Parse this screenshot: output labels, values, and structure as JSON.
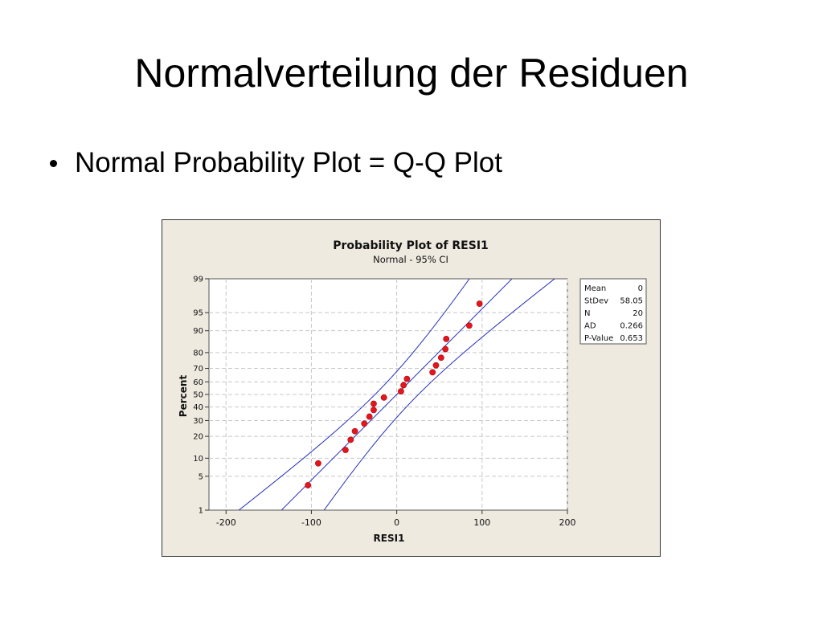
{
  "slide": {
    "title": "Normalverteilung der Residuen",
    "bullet": "Normal Probability Plot = Q-Q Plot"
  },
  "colors": {
    "figure_bg": "#eeeae0",
    "plot_bg": "#ffffff",
    "points": "#e8141c",
    "ci_lines": "#2630b8",
    "grid": "#c8c8c8"
  },
  "chart_data": {
    "type": "scatter",
    "title": "Probability Plot of RESI1",
    "subtitle": "Normal - 95% CI",
    "xlabel": "RESI1",
    "ylabel": "Percent",
    "x_ticks": [
      -200,
      -100,
      0,
      100,
      200
    ],
    "y_ticks": [
      1,
      5,
      10,
      20,
      30,
      40,
      50,
      60,
      70,
      80,
      90,
      95,
      99
    ],
    "xlim": [
      -220,
      200
    ],
    "ylim_percent": [
      1,
      99
    ],
    "y_scale": "normal-probability",
    "grid": true,
    "legend_position": "top-right",
    "stats": [
      {
        "label": "Mean",
        "value": "0"
      },
      {
        "label": "StDev",
        "value": "58.05"
      },
      {
        "label": "N",
        "value": "20"
      },
      {
        "label": "AD",
        "value": "0.266"
      },
      {
        "label": "P-Value",
        "value": "0.653"
      }
    ],
    "mean": 0,
    "stdev": 58.05,
    "points": [
      {
        "x": -104,
        "y": 3.4
      },
      {
        "x": -92,
        "y": 8.3
      },
      {
        "x": -60,
        "y": 13.2
      },
      {
        "x": -54,
        "y": 18.1
      },
      {
        "x": -49,
        "y": 23.0
      },
      {
        "x": -38,
        "y": 27.9
      },
      {
        "x": -32,
        "y": 32.8
      },
      {
        "x": -27,
        "y": 37.7
      },
      {
        "x": -27,
        "y": 42.6
      },
      {
        "x": -15,
        "y": 47.5
      },
      {
        "x": 5,
        "y": 52.5
      },
      {
        "x": 8,
        "y": 57.4
      },
      {
        "x": 12,
        "y": 62.3
      },
      {
        "x": 42,
        "y": 67.2
      },
      {
        "x": 46,
        "y": 72.1
      },
      {
        "x": 52,
        "y": 77.0
      },
      {
        "x": 57,
        "y": 81.9
      },
      {
        "x": 58,
        "y": 86.8
      },
      {
        "x": 85,
        "y": 91.7
      },
      {
        "x": 97,
        "y": 96.6
      }
    ]
  }
}
